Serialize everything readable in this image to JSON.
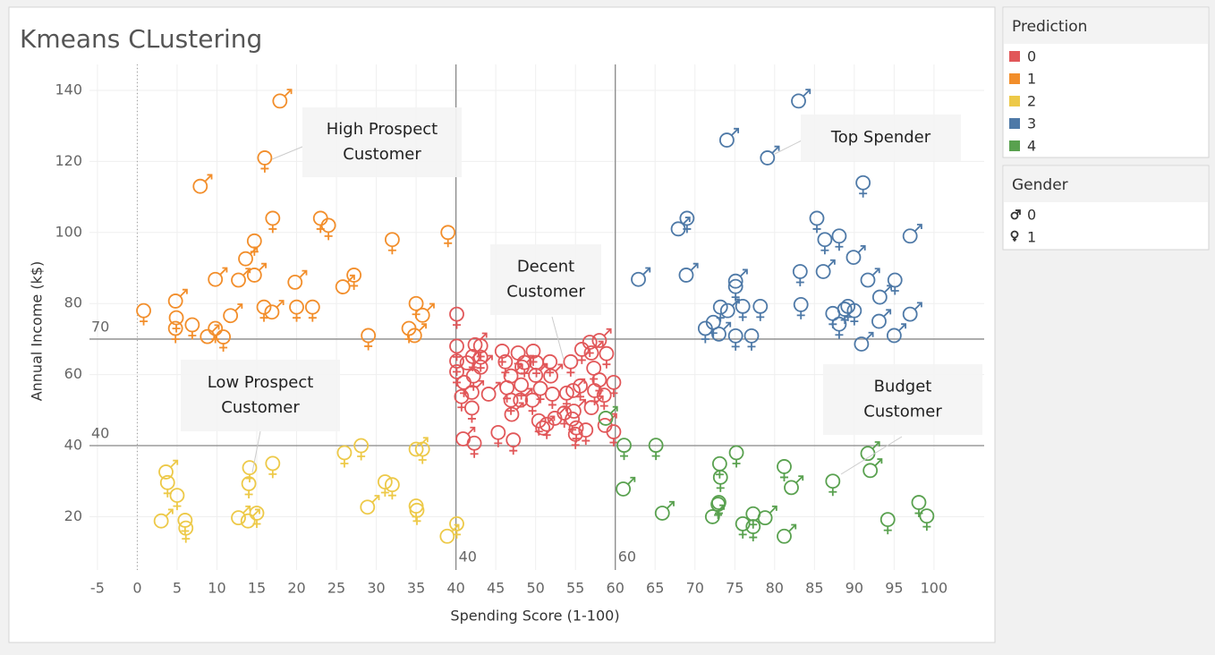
{
  "chart_data": {
    "type": "scatter",
    "title": "Kmeans CLustering",
    "x_label": "Spending Score (1-100)",
    "y_label": "Annual Income (k$)",
    "xlim": [
      -6,
      106.3
    ],
    "ylim": [
      5,
      147.3
    ],
    "xticks": [
      -5,
      0,
      5,
      10,
      15,
      20,
      25,
      30,
      35,
      40,
      45,
      50,
      55,
      60,
      65,
      70,
      75,
      80,
      85,
      90,
      95,
      100
    ],
    "yticks": [
      20,
      40,
      60,
      80,
      100,
      120,
      140
    ],
    "grid": true,
    "zero_line": true,
    "reference_lines": {
      "x": [
        40,
        60
      ],
      "y": [
        70,
        40
      ]
    },
    "legend_title": "Prediction",
    "gender_legend": {
      "title": "Gender",
      "values": [
        0,
        1
      ]
    },
    "annotations": [
      {
        "lines": [
          "High Prospect",
          "Customer"
        ]
      },
      {
        "lines": [
          "Top Spender"
        ]
      },
      {
        "lines": [
          "Decent",
          "Customer"
        ]
      },
      {
        "lines": [
          "Low Prospect",
          "Customer"
        ]
      },
      {
        "lines": [
          "Budget",
          "Customer"
        ]
      }
    ],
    "series": [
      {
        "name": "0",
        "color": "#e15759",
        "x": [
          40.1,
          40.1,
          40.1,
          41.4,
          40.1,
          41,
          40.7,
          40.9,
          42.3,
          42.2,
          42,
          42,
          44.1,
          45.3,
          47.2,
          42.1,
          42.4,
          43.1,
          43.1,
          43.1,
          45.8,
          46.2,
          46.9,
          46.4,
          46.9,
          47,
          47.8,
          48.3,
          48.6,
          48.2,
          48.1,
          49.7,
          50.1,
          50,
          50.6,
          49.6,
          50.4,
          50.9,
          51.8,
          51.9,
          52.1,
          51.4,
          52.4,
          53.6,
          53.9,
          54.4,
          54.7,
          54.6,
          55.1,
          54.8,
          55.6,
          55.8,
          56.8,
          57,
          57.3,
          57.4,
          58,
          58.9,
          58,
          57,
          58.6,
          59.8,
          59.8,
          58.7,
          56.3,
          55
        ],
        "values": [
          77,
          68,
          63.8,
          63.3,
          60.8,
          57.8,
          53.8,
          41.9,
          40.7,
          59.6,
          55,
          50.6,
          54.5,
          43.7,
          41.6,
          65.1,
          68.4,
          68.1,
          64.9,
          62.1,
          66.6,
          63.6,
          59.6,
          56.3,
          52.8,
          48.8,
          66.1,
          62.1,
          63.4,
          57.1,
          52.8,
          66.6,
          63.4,
          59.8,
          56.1,
          52.8,
          47,
          45,
          63.6,
          59.6,
          54.5,
          46,
          47.7,
          49.2,
          54.8,
          63.6,
          55.5,
          47.5,
          45,
          49.7,
          56.8,
          67.1,
          69.1,
          66.1,
          61.8,
          55.5,
          69.6,
          65.9,
          58.5,
          50.7,
          54.2,
          57.8,
          43.9,
          45.7,
          44.4,
          43.2
        ],
        "gender": [
          1,
          1,
          1,
          0,
          1,
          1,
          1,
          0,
          1,
          1,
          0,
          1,
          0,
          1,
          1,
          1,
          0,
          1,
          1,
          0,
          1,
          1,
          0,
          1,
          1,
          0,
          1,
          0,
          1,
          1,
          0,
          1,
          1,
          0,
          1,
          1,
          1,
          0,
          1,
          0,
          1,
          1,
          0,
          1,
          1,
          1,
          0,
          1,
          1,
          0,
          1,
          1,
          1,
          0,
          1,
          1,
          0,
          1,
          1,
          0,
          1,
          1,
          1,
          0,
          1,
          1
        ]
      },
      {
        "name": "1",
        "color": "#f28e2b",
        "x": [
          0.8,
          17.9,
          16,
          7.9,
          17,
          14.7,
          13.6,
          9.8,
          12.7,
          14.7,
          4.8,
          4.9,
          4.8,
          6.9,
          8.8,
          9.8,
          10.8,
          11.7,
          15.9,
          16.9,
          19.8,
          20,
          22,
          23,
          24,
          25.8,
          27.2,
          29,
          32,
          34.1,
          34.8,
          35,
          35.8,
          39
        ],
        "values": [
          78,
          137,
          121,
          113,
          104,
          97.6,
          92.6,
          86.8,
          86.6,
          88,
          80.7,
          76,
          73,
          74,
          70.7,
          73,
          70.6,
          76.6,
          79,
          77.6,
          86,
          79,
          79,
          104,
          102,
          84.7,
          88,
          71,
          98,
          73,
          71,
          80,
          76.7,
          100
        ],
        "gender": [
          1,
          0,
          1,
          0,
          1,
          1,
          0,
          0,
          0,
          0,
          0,
          1,
          1,
          1,
          0,
          1,
          1,
          0,
          1,
          0,
          0,
          1,
          1,
          1,
          1,
          0,
          1,
          1,
          1,
          1,
          0,
          1,
          0,
          1
        ]
      },
      {
        "name": "2",
        "color": "#edc948",
        "x": [
          3,
          3.6,
          3.8,
          5,
          6,
          6.1,
          12.7,
          14,
          14.1,
          13.9,
          15,
          17,
          26,
          28.1,
          28.9,
          31.1,
          32,
          35,
          35.8,
          35,
          35.1,
          38.9,
          40.1
        ],
        "values": [
          18.8,
          32.6,
          29.6,
          26,
          19,
          16.8,
          19.7,
          29.3,
          33.8,
          18.8,
          21,
          35,
          38,
          40,
          22.7,
          29.8,
          29,
          39,
          39,
          23,
          21.8,
          14.5,
          18
        ],
        "gender": [
          0,
          0,
          1,
          1,
          1,
          1,
          0,
          1,
          1,
          0,
          1,
          1,
          1,
          1,
          0,
          1,
          1,
          0,
          1,
          1,
          1,
          0,
          1
        ]
      },
      {
        "name": "3",
        "color": "#4e79a7",
        "x": [
          83,
          74,
          79.1,
          91.1,
          69,
          67.9,
          85.3,
          86.3,
          88.1,
          89.9,
          97,
          62.9,
          68.9,
          75.1,
          75.1,
          83.2,
          86.1,
          91.7,
          95.1,
          93.2,
          73.2,
          74.1,
          76,
          78.2,
          83.3,
          87.3,
          88.8,
          89.2,
          90,
          88.1,
          71.3,
          72.3,
          73,
          75.1,
          77.1,
          93.1,
          97,
          90.9,
          95
        ],
        "values": [
          137,
          126,
          121,
          114,
          104,
          101,
          104,
          98,
          99,
          93,
          99,
          86.8,
          88,
          86.3,
          84.8,
          89,
          89,
          86.6,
          86.6,
          81.8,
          79,
          78,
          79.2,
          79.2,
          79.7,
          77.2,
          78.4,
          79.2,
          78,
          74.2,
          73,
          74.7,
          71.4,
          70.9,
          70.9,
          75,
          77,
          68.6,
          71
        ],
        "gender": [
          0,
          0,
          0,
          1,
          1,
          0,
          1,
          1,
          1,
          0,
          0,
          0,
          0,
          0,
          1,
          1,
          0,
          0,
          1,
          0,
          1,
          0,
          1,
          1,
          1,
          1,
          1,
          1,
          1,
          1,
          1,
          1,
          0,
          1,
          1,
          0,
          0,
          0,
          0
        ]
      },
      {
        "name": "4",
        "color": "#59a14f",
        "x": [
          61,
          61.1,
          65.1,
          65.9,
          72.2,
          73.1,
          73.2,
          73,
          72.9,
          75.2,
          76,
          77.3,
          77.3,
          78.8,
          81.2,
          82.1,
          81.2,
          87.3,
          91.7,
          92,
          94.2,
          98.1,
          99.1,
          58.8
        ],
        "values": [
          27.8,
          40.1,
          40.1,
          21,
          20,
          34.9,
          31.1,
          24,
          23.5,
          38,
          18,
          20.8,
          17.2,
          19.7,
          34.1,
          28.2,
          14.5,
          30,
          37.8,
          33,
          19.2,
          24,
          20.2,
          47.7
        ],
        "gender": [
          0,
          1,
          1,
          0,
          0,
          1,
          1,
          1,
          1,
          1,
          1,
          1,
          1,
          0,
          1,
          0,
          0,
          1,
          0,
          0,
          1,
          1,
          1,
          0
        ]
      }
    ]
  }
}
